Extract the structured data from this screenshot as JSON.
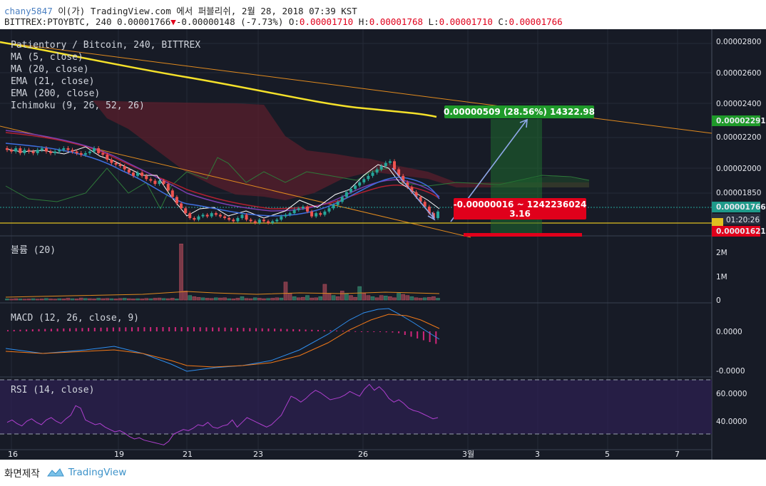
{
  "header": {
    "user": "chany5847",
    "rest": " 이(가) TradingView.com 에서 퍼블리쉬, 2월 28, 2018 07:39 KST",
    "symbol_line": "BITTREX:PTOYBTC, 240 0.00001766",
    "change_arrow": "▼",
    "change": "-0.00000148 (-7.73%)",
    "o_label": " O:",
    "o": "0.00001710",
    "h_label": " H:",
    "h": "0.00001768",
    "l_label": " L:",
    "l": "0.00001710",
    "c_label": " C:",
    "c": "0.00001766"
  },
  "legend": {
    "title": "Patientory / Bitcoin, 240, BITTREX",
    "ma5": "MA (5, close)",
    "ma20": "MA (20, close)",
    "ema21": "EMA (21, close)",
    "ema200": "EMA (200, close)",
    "ichimoku": "Ichimoku (9, 26, 52, 26)"
  },
  "volume_label": "볼륨 (20)",
  "macd_label": "MACD (12, 26, close, 9)",
  "rsi_label": "RSI (14, close)",
  "price_axis": [
    "0.00002800",
    "0.00002600",
    "0.00002400",
    "0.00002200",
    "0.00002000",
    "0.00001850"
  ],
  "price_tags": {
    "top": "0.00002291",
    "current": "0.00001766",
    "countdown": "01:20:26",
    "bottom": "0.00001621"
  },
  "volume_axis": [
    "2M",
    "1M",
    "0"
  ],
  "macd_axis": [
    "0.0000",
    "-0.0000"
  ],
  "rsi_axis": [
    "60.0000",
    "40.0000"
  ],
  "x_axis": [
    "16",
    "19",
    "21",
    "23",
    "26",
    "3월",
    "3",
    "5",
    "7"
  ],
  "annotations": {
    "target": "0.00000509 (28.56%) 14322.98",
    "drop_line1": "-0.00000016 ~ 1242236024",
    "drop_line2": "3.16"
  },
  "footer": {
    "caption": "화면제작",
    "brand": "TradingView"
  },
  "colors": {
    "background": "#171b26",
    "up": "#26a69a",
    "down": "#ef5350",
    "ema200": "#f5e12a",
    "trendline": "#e08a1e",
    "target_green": "#1e8a2e",
    "drop_red": "#e0001b"
  },
  "chart_data": {
    "type": "candlestick",
    "symbol": "BITTREX:PTOYBTC",
    "interval": "240",
    "x_ticks": [
      "16",
      "19",
      "21",
      "23",
      "26",
      "3월",
      "3",
      "5",
      "7"
    ],
    "price_range": [
      1.62e-05,
      2.85e-05
    ],
    "last": {
      "open": 1.71e-05,
      "high": 1.768e-05,
      "low": 1.71e-05,
      "close": 1.766e-05
    },
    "candles_close": [
      2.15e-05,
      2.14e-05,
      2.16e-05,
      2.13e-05,
      2.15e-05,
      2.14e-05,
      2.13e-05,
      2.15e-05,
      2.16e-05,
      2.14e-05,
      2.13e-05,
      2.14e-05,
      2.15e-05,
      2.16e-05,
      2.15e-05,
      2.14e-05,
      2.13e-05,
      2.12e-05,
      2.13e-05,
      2.14e-05,
      2.16e-05,
      2.13e-05,
      2.12e-05,
      2.09e-05,
      2.07e-05,
      2.06e-05,
      2.05e-05,
      2.03e-05,
      2.01e-05,
      1.99e-05,
      2.01e-05,
      1.99e-05,
      1.97e-05,
      1.96e-05,
      1.94e-05,
      1.96e-05,
      1.94e-05,
      1.9e-05,
      1.86e-05,
      1.82e-05,
      1.79e-05,
      1.76e-05,
      1.73e-05,
      1.72e-05,
      1.74e-05,
      1.75e-05,
      1.74e-05,
      1.76e-05,
      1.75e-05,
      1.74e-05,
      1.73e-05,
      1.72e-05,
      1.71e-05,
      1.73e-05,
      1.75e-05,
      1.72e-05,
      1.71e-05,
      1.7e-05,
      1.72e-05,
      1.71e-05,
      1.7e-05,
      1.71e-05,
      1.72e-05,
      1.74e-05,
      1.75e-05,
      1.76e-05,
      1.78e-05,
      1.79e-05,
      1.8e-05,
      1.77e-05,
      1.74e-05,
      1.76e-05,
      1.75e-05,
      1.77e-05,
      1.79e-05,
      1.81e-05,
      1.83e-05,
      1.86e-05,
      1.89e-05,
      1.91e-05,
      1.93e-05,
      1.95e-05,
      1.97e-05,
      1.99e-05,
      2.01e-05,
      2.03e-05,
      2.05e-05,
      2.07e-05,
      2.08e-05,
      2.03e-05,
      1.99e-05,
      1.95e-05,
      1.92e-05,
      1.89e-05,
      1.86e-05,
      1.83e-05,
      1.8e-05,
      1.76e-05,
      1.73e-05,
      1.77e-05
    ],
    "volume": [
      0.05,
      0.04,
      0.06,
      0.05,
      0.04,
      0.05,
      0.06,
      0.04,
      0.05,
      0.07,
      0.05,
      0.04,
      0.06,
      0.05,
      0.08,
      0.06,
      0.05,
      0.09,
      0.07,
      0.06,
      0.05,
      0.08,
      0.06,
      0.07,
      0.06,
      0.05,
      0.07,
      0.08,
      0.06,
      0.05,
      0.06,
      0.05,
      0.07,
      0.06,
      0.08,
      0.09,
      0.07,
      0.06,
      0.08,
      0.05,
      2.5,
      0.4,
      0.2,
      0.15,
      0.12,
      0.1,
      0.08,
      0.07,
      0.1,
      0.09,
      0.1,
      0.06,
      0.05,
      0.08,
      0.15,
      0.07,
      0.06,
      0.1,
      0.08,
      0.06,
      0.07,
      0.08,
      0.1,
      0.09,
      0.8,
      0.3,
      0.15,
      0.1,
      0.12,
      0.2,
      0.09,
      0.1,
      0.15,
      0.7,
      0.3,
      0.2,
      0.15,
      0.4,
      0.3,
      0.2,
      0.12,
      0.6,
      0.3,
      0.2,
      0.15,
      0.1,
      0.2,
      0.18,
      0.15,
      0.1,
      0.3,
      0.25,
      0.2,
      0.15,
      0.1,
      0.08,
      0.1,
      0.12,
      0.15,
      0.08
    ],
    "volume_range": [
      0,
      2.7
    ],
    "macd_range": [
      -1,
      1
    ],
    "rsi": [
      38,
      40,
      37,
      35,
      39,
      41,
      38,
      36,
      40,
      42,
      39,
      37,
      41,
      44,
      52,
      50,
      40,
      38,
      36,
      37,
      34,
      32,
      30,
      31,
      29,
      26,
      24,
      25,
      23,
      22,
      21,
      20,
      19,
      22,
      28,
      30,
      32,
      31,
      33,
      36,
      35,
      38,
      34,
      33,
      35,
      36,
      40,
      34,
      38,
      42,
      40,
      38,
      36,
      34,
      36,
      40,
      44,
      52,
      60,
      58,
      55,
      58,
      62,
      65,
      63,
      60,
      57,
      58,
      59,
      61,
      64,
      62,
      60,
      66,
      70,
      65,
      68,
      64,
      58,
      55,
      57,
      54,
      50,
      48,
      47,
      45,
      43,
      41,
      42
    ],
    "rsi_range": [
      15,
      75
    ]
  }
}
